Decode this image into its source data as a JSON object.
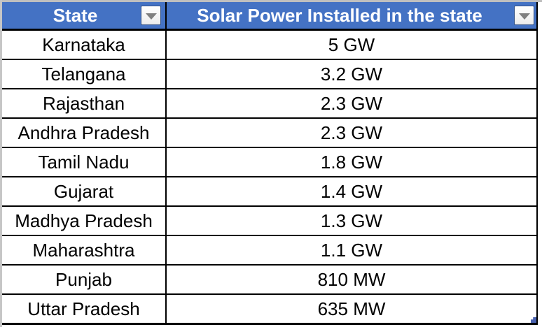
{
  "table": {
    "header_color": "#4472C4",
    "columns": [
      {
        "label": "State",
        "filter_icon": "dropdown-filter-icon"
      },
      {
        "label": "Solar Power Installed in the state",
        "filter_icon": "dropdown-filter-icon"
      }
    ],
    "rows": [
      {
        "state": "Karnataka",
        "capacity": "5 GW"
      },
      {
        "state": "Telangana",
        "capacity": "3.2 GW"
      },
      {
        "state": "Rajasthan",
        "capacity": "2.3 GW"
      },
      {
        "state": "Andhra Pradesh",
        "capacity": "2.3 GW"
      },
      {
        "state": "Tamil Nadu",
        "capacity": "1.8 GW"
      },
      {
        "state": "Gujarat",
        "capacity": "1.4 GW"
      },
      {
        "state": "Madhya Pradesh",
        "capacity": "1.3 GW"
      },
      {
        "state": "Maharashtra",
        "capacity": "1.1 GW"
      },
      {
        "state": "Punjab",
        "capacity": "810 MW"
      },
      {
        "state": "Uttar Pradesh",
        "capacity": "635 MW"
      }
    ]
  }
}
